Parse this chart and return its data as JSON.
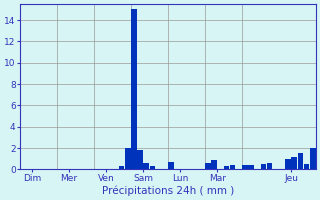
{
  "background_color": "#d8f5f5",
  "grid_color": "#999999",
  "bar_color": "#0033bb",
  "xlabel": "Précipitations 24h ( mm )",
  "xlabel_color": "#3333bb",
  "tick_color": "#3333bb",
  "axis_color": "#3333bb",
  "ylim": [
    0,
    15.5
  ],
  "yticks": [
    0,
    2,
    4,
    6,
    8,
    10,
    12,
    14
  ],
  "day_labels": [
    "Dim",
    "Mer",
    "Ven",
    "Sam",
    "Lun",
    "Mar",
    "Jeu"
  ],
  "day_positions": [
    1.5,
    7.5,
    13.5,
    19.5,
    25.5,
    31.5,
    43.5
  ],
  "vline_positions": [
    0,
    6,
    12,
    18,
    24,
    30,
    36,
    48
  ],
  "n_bars": 48,
  "bars": [
    0.0,
    0.0,
    0.0,
    0.0,
    0.0,
    0.0,
    0.0,
    0.0,
    0.0,
    0.0,
    0.0,
    0.0,
    0.0,
    0.0,
    0.0,
    0.0,
    0.3,
    2.0,
    15.0,
    1.8,
    0.6,
    0.3,
    0.0,
    0.0,
    0.7,
    0.0,
    0.0,
    0.0,
    0.0,
    0.0,
    0.6,
    0.9,
    0.0,
    0.3,
    0.4,
    0.0,
    0.4,
    0.4,
    0.0,
    0.5,
    0.6,
    0.0,
    0.0,
    1.0,
    1.2,
    1.5,
    0.5,
    2.0
  ]
}
